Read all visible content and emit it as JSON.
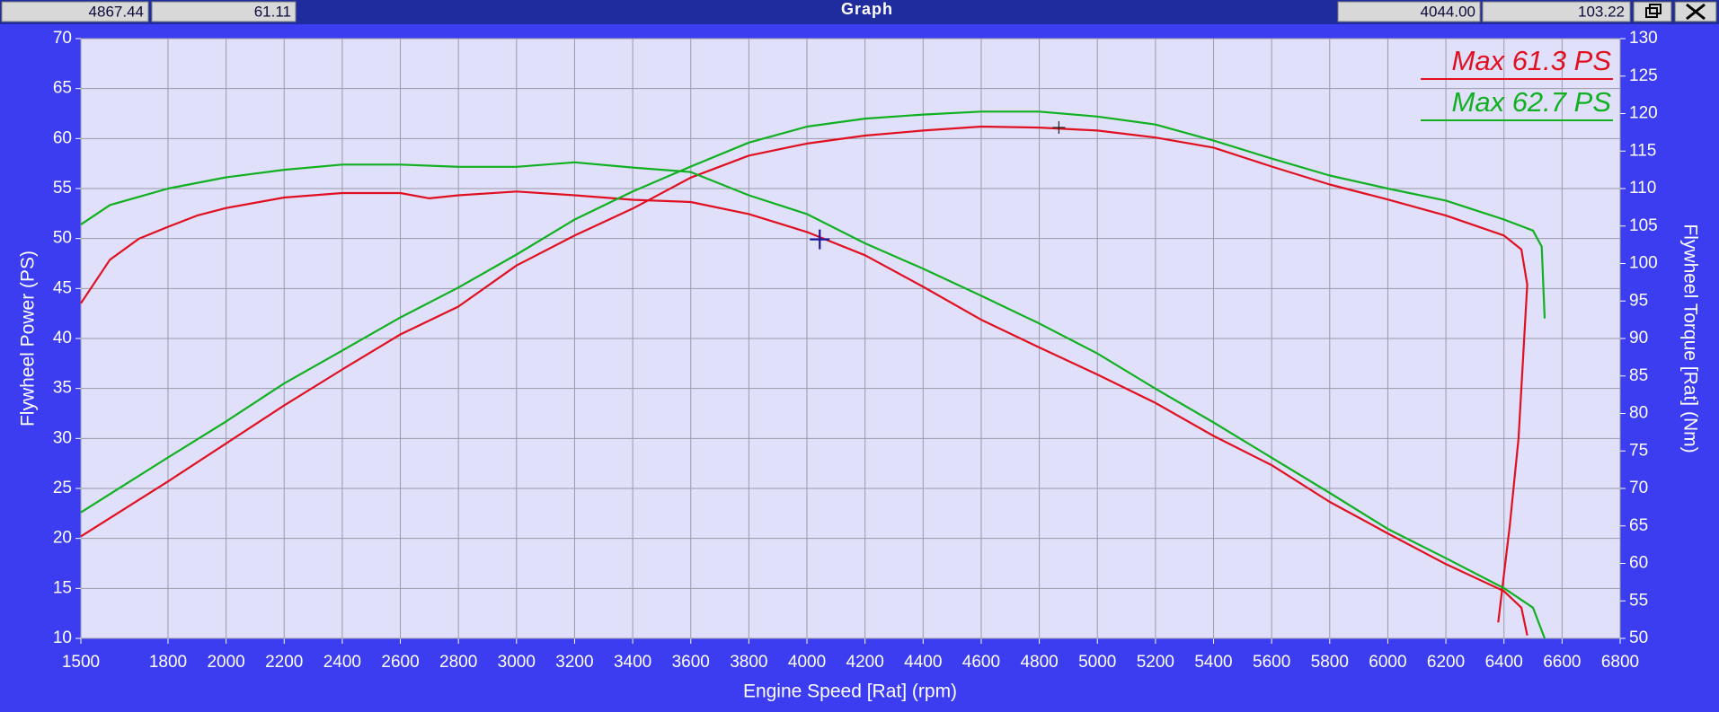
{
  "chart_data": {
    "type": "line",
    "title": "Graph",
    "xlabel": "Engine Speed [Rat] (rpm)",
    "ylabel": "Flywheel Power (PS)",
    "y2label": "Flywheel Torque [Rat] (Nm)",
    "xlim": [
      1500,
      6800
    ],
    "xticks": [
      1500,
      1800,
      2000,
      2200,
      2400,
      2600,
      2800,
      3000,
      3200,
      3400,
      3600,
      3800,
      4000,
      4200,
      4400,
      4600,
      4800,
      5000,
      5200,
      5400,
      5600,
      5800,
      6000,
      6200,
      6400,
      6600,
      6800
    ],
    "ylim": [
      10,
      70
    ],
    "yticks": [
      10,
      15,
      20,
      25,
      30,
      35,
      40,
      45,
      50,
      55,
      60,
      65,
      70
    ],
    "y2lim": [
      50,
      130
    ],
    "y2ticks": [
      50,
      55,
      60,
      65,
      70,
      75,
      80,
      85,
      90,
      95,
      100,
      105,
      110,
      115,
      120,
      125,
      130
    ],
    "grid": true,
    "readouts": [
      {
        "x": 4867.44,
        "y": 61.11,
        "axis": "y",
        "color": "#202020"
      },
      {
        "x": {
          "value": 4044,
          "label": "4044.00"
        },
        "y": 103.22,
        "axis": "y2",
        "color": "#1a1aa0"
      }
    ],
    "annotations": [
      {
        "text": "Max 61.3 PS",
        "color": "#e01020"
      },
      {
        "text": "Max 62.7 PS",
        "color": "#10b020"
      }
    ],
    "series": [
      {
        "color": "#e01020",
        "axis": "y",
        "x": [
          1500,
          1800,
          2000,
          2200,
          2400,
          2600,
          2800,
          3000,
          3200,
          3400,
          3600,
          3800,
          4000,
          4200,
          4400,
          4600,
          4800,
          5000,
          5200,
          5400,
          5600,
          5800,
          6000,
          6200,
          6400,
          6460,
          6480,
          6450,
          6420,
          6380
        ],
        "values": [
          20.2,
          25.7,
          29.5,
          33.3,
          36.9,
          40.4,
          43.2,
          47.3,
          50.3,
          53.0,
          56.1,
          58.3,
          59.5,
          60.3,
          60.8,
          61.2,
          61.1,
          60.8,
          60.1,
          59.1,
          57.2,
          55.4,
          53.9,
          52.3,
          50.3,
          48.9,
          45.4,
          30.0,
          21.3,
          11.6
        ]
      },
      {
        "color": "#e01020",
        "axis": "y2",
        "x": [
          1500,
          1600,
          1700,
          1800,
          1900,
          2000,
          2200,
          2400,
          2600,
          2700,
          2800,
          3000,
          3200,
          3400,
          3600,
          3800,
          4000,
          4200,
          4400,
          4600,
          4800,
          5000,
          5200,
          5400,
          5600,
          5800,
          6000,
          6200,
          6400,
          6460,
          6480
        ],
        "values": [
          94.7,
          100.5,
          103.3,
          104.9,
          106.4,
          107.4,
          108.8,
          109.4,
          109.4,
          108.7,
          109.1,
          109.6,
          109.1,
          108.5,
          108.2,
          106.6,
          104.2,
          101.1,
          96.9,
          92.5,
          88.8,
          85.2,
          81.4,
          77.0,
          73.1,
          68.2,
          64.0,
          59.9,
          56.3,
          54.1,
          50.4
        ]
      },
      {
        "color": "#10b020",
        "axis": "y",
        "x": [
          1500,
          1800,
          2000,
          2200,
          2400,
          2600,
          2800,
          3000,
          3200,
          3400,
          3600,
          3800,
          4000,
          4200,
          4400,
          4600,
          4800,
          5000,
          5200,
          5400,
          5600,
          5800,
          6000,
          6200,
          6400,
          6500,
          6530,
          6540
        ],
        "values": [
          22.6,
          28.1,
          31.7,
          35.5,
          38.8,
          42.1,
          45.1,
          48.4,
          51.9,
          54.7,
          57.2,
          59.6,
          61.2,
          62.0,
          62.4,
          62.7,
          62.7,
          62.2,
          61.4,
          59.8,
          58.0,
          56.3,
          55.0,
          53.8,
          51.9,
          50.8,
          49.2,
          42.0
        ]
      },
      {
        "color": "#10b020",
        "axis": "y2",
        "x": [
          1500,
          1600,
          1800,
          2000,
          2200,
          2400,
          2600,
          2800,
          3000,
          3200,
          3400,
          3600,
          3800,
          4000,
          4200,
          4400,
          4600,
          4800,
          5000,
          5200,
          5400,
          5600,
          5800,
          6000,
          6200,
          6400,
          6500,
          6540
        ],
        "values": [
          105.2,
          107.8,
          110.0,
          111.5,
          112.5,
          113.2,
          113.2,
          112.9,
          112.9,
          113.5,
          112.8,
          112.2,
          109.1,
          106.6,
          102.7,
          99.3,
          95.7,
          92.0,
          88.0,
          83.3,
          78.8,
          74.1,
          69.4,
          64.6,
          60.7,
          56.7,
          54.1,
          50.0
        ]
      }
    ]
  }
}
